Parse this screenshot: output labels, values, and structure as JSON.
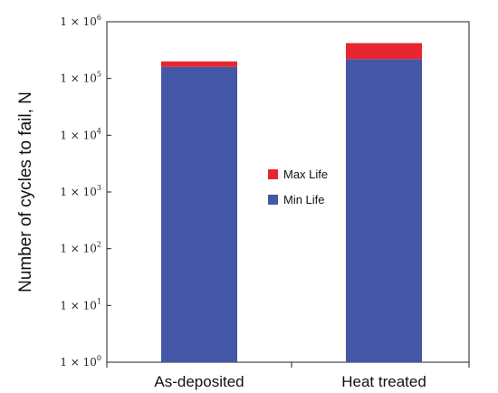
{
  "chart_data": {
    "type": "bar",
    "stacked": true,
    "yscale": "log",
    "ylabel": "Number of cycles to fail, N",
    "ylim": [
      1,
      1000000
    ],
    "yticks": [
      {
        "mantissa": "1 × 10",
        "exp": "0",
        "value": 1
      },
      {
        "mantissa": "1 × 10",
        "exp": "1",
        "value": 10
      },
      {
        "mantissa": "1 × 10",
        "exp": "2",
        "value": 100
      },
      {
        "mantissa": "1 × 10",
        "exp": "3",
        "value": 1000
      },
      {
        "mantissa": "1 × 10",
        "exp": "4",
        "value": 10000
      },
      {
        "mantissa": "1 × 10",
        "exp": "5",
        "value": 100000
      },
      {
        "mantissa": "1 × 10",
        "exp": "6",
        "value": 1000000
      }
    ],
    "categories": [
      "As-deposited",
      "Heat treated"
    ],
    "series": [
      {
        "name": "Min Life",
        "color": "#4457a6",
        "values": [
          160000,
          220000
        ]
      },
      {
        "name": "Max Life",
        "color": "#e8262f",
        "values": [
          200000,
          420000
        ]
      }
    ],
    "legend": {
      "position": "center",
      "items": [
        "Max Life",
        "Min Life"
      ]
    },
    "grid": false
  }
}
